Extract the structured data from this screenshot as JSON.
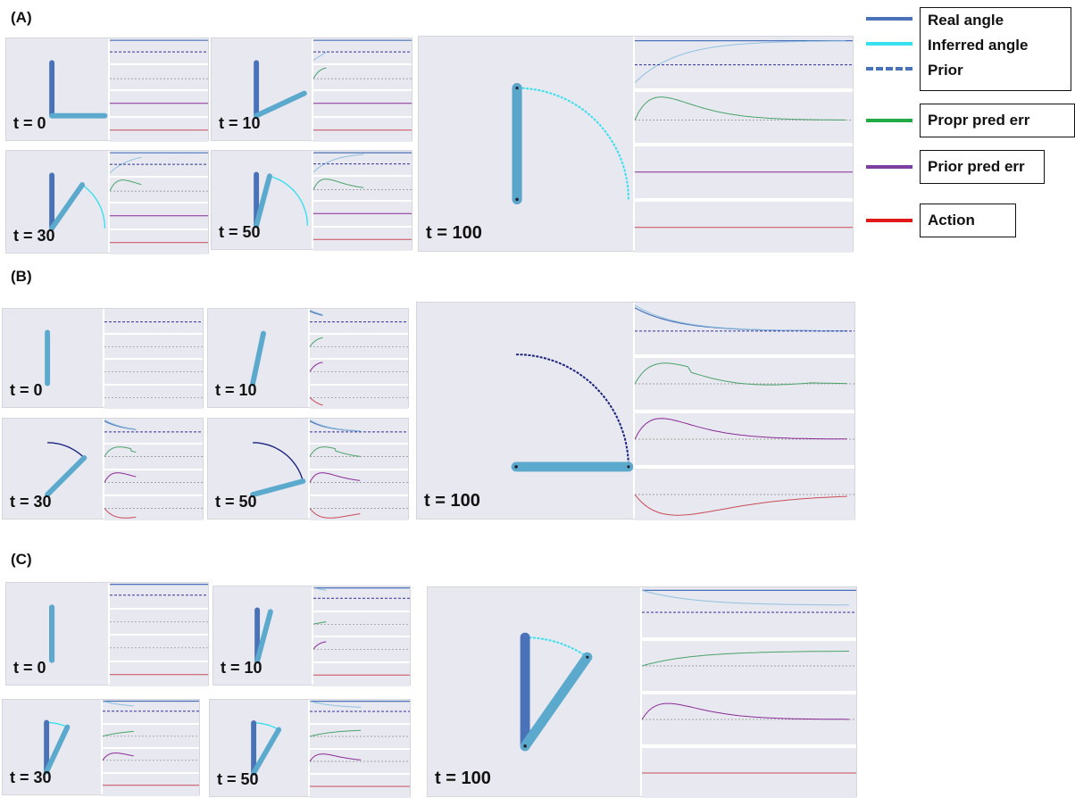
{
  "sections": [
    {
      "label": "(A)",
      "arm_color": "#5ba9cc",
      "panels": [
        {
          "t_label": "t = 0",
          "real_angle_deg": 0,
          "inferred_angle_deg": 90,
          "trail": "none"
        },
        {
          "t_label": "t = 10",
          "real_angle_deg": 0,
          "inferred_angle_deg": 65,
          "trail": "none"
        },
        {
          "t_label": "t = 30",
          "real_angle_deg": 0,
          "inferred_angle_deg": 35,
          "trail": "inferred"
        },
        {
          "t_label": "t = 50",
          "real_angle_deg": 0,
          "inferred_angle_deg": 15,
          "trail": "inferred"
        },
        {
          "t_label": "t = 100",
          "real_angle_deg": 0,
          "inferred_angle_deg": 0,
          "trail": "inferred"
        }
      ]
    },
    {
      "label": "(B)",
      "arm_color": "#5ba9cc",
      "panels": [
        {
          "t_label": "t = 0",
          "real_angle_deg": 0,
          "inferred_angle_deg": 0,
          "trail": "none"
        },
        {
          "t_label": "t = 10",
          "real_angle_deg": 12,
          "inferred_angle_deg": 12,
          "trail": "none"
        },
        {
          "t_label": "t = 30",
          "real_angle_deg": 45,
          "inferred_angle_deg": 45,
          "trail": "real"
        },
        {
          "t_label": "t = 50",
          "real_angle_deg": 75,
          "inferred_angle_deg": 75,
          "trail": "real"
        },
        {
          "t_label": "t = 100",
          "real_angle_deg": 90,
          "inferred_angle_deg": 90,
          "trail": "real"
        }
      ]
    },
    {
      "label": "(C)",
      "arm_color": "#5ba9cc",
      "panels": [
        {
          "t_label": "t = 0",
          "real_angle_deg": 0,
          "inferred_angle_deg": 0,
          "trail": "none"
        },
        {
          "t_label": "t = 10",
          "real_angle_deg": 0,
          "inferred_angle_deg": 15,
          "trail": "none"
        },
        {
          "t_label": "t = 30",
          "real_angle_deg": 0,
          "inferred_angle_deg": 25,
          "trail": "inferred"
        },
        {
          "t_label": "t = 50",
          "real_angle_deg": 0,
          "inferred_angle_deg": 30,
          "trail": "inferred"
        },
        {
          "t_label": "t = 100",
          "real_angle_deg": 0,
          "inferred_angle_deg": 35,
          "trail": "inferred"
        }
      ]
    }
  ],
  "legend": [
    {
      "label": "Real angle",
      "color": "#4a72b8",
      "style": "solid"
    },
    {
      "label": "Inferred angle",
      "color": "#36e0ee",
      "style": "solid"
    },
    {
      "label": "Prior",
      "color": "#4a72b8",
      "style": "dashed"
    },
    {
      "label": "Propr pred err",
      "color": "#22aa44",
      "style": "solid"
    },
    {
      "label": "Prior pred err",
      "color": "#7a3fa0",
      "style": "solid"
    },
    {
      "label": "Action",
      "color": "#e01a1a",
      "style": "solid"
    }
  ],
  "plot_colors": {
    "real": "#4a72b8",
    "inferred": "#8fc1e0",
    "prior": "#3030a0",
    "propr": "#4aa36a",
    "priorerr": "#8a2a96",
    "action": "#c94b56",
    "zero": "#8a8a8a",
    "real_trail": "#1a237e"
  }
}
